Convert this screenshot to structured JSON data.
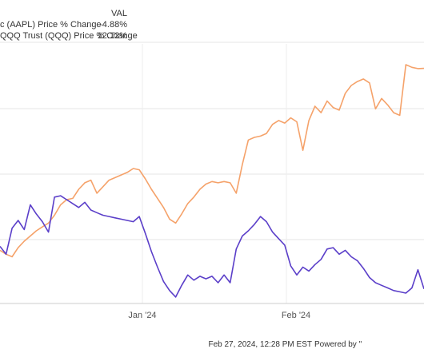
{
  "chart_data": {
    "type": "line",
    "title": "",
    "xlabel": "",
    "ylabel": "",
    "x_tick_labels": [
      "Jan '24",
      "Feb '24"
    ],
    "grid": true,
    "legend_position": "top-left",
    "legend_header": "VAL",
    "series": [
      {
        "name": "Apple Inc (AAPL) Price % Change",
        "legend_name_visible": "c (AAPL) Price % Change",
        "last_value": "-4.88%",
        "color": "#5b3fc9",
        "values": [
          -1.6,
          -2.2,
          -0.2,
          0.4,
          -0.3,
          1.6,
          0.9,
          0.3,
          -0.5,
          2.2,
          2.3,
          2.0,
          1.7,
          1.4,
          1.8,
          1.2,
          1.0,
          0.8,
          0.7,
          0.6,
          0.5,
          0.4,
          0.3,
          0.7,
          -0.6,
          -2.0,
          -3.2,
          -4.3,
          -5.0,
          -5.5,
          -4.6,
          -3.8,
          -4.2,
          -3.9,
          -4.1,
          -3.9,
          -4.4,
          -3.8,
          -4.4,
          -1.8,
          -0.8,
          -0.4,
          0.1,
          0.7,
          0.3,
          -0.5,
          -1.0,
          -1.5,
          -3.1,
          -3.8,
          -3.2,
          -3.5,
          -3.0,
          -2.6,
          -1.8,
          -1.7,
          -2.2,
          -1.9,
          -2.4,
          -2.7,
          -3.3,
          -4.0,
          -4.4,
          -4.6,
          -4.8,
          -5.0,
          -5.1,
          -5.2,
          -4.8,
          -3.4,
          -4.88
        ]
      },
      {
        "name": "Invesco QQQ Trust (QQQ) Price % Change",
        "legend_name_visible": "QQQ Trust (QQQ) Price % Change",
        "last_value": "12.12%",
        "color": "#f5a26a",
        "values": [
          -1.9,
          -2.2,
          -2.4,
          -1.7,
          -1.2,
          -0.8,
          -0.4,
          -0.1,
          0.2,
          0.8,
          1.6,
          2.0,
          2.1,
          2.8,
          3.3,
          3.5,
          2.5,
          3.0,
          3.5,
          3.7,
          3.9,
          4.1,
          4.4,
          4.3,
          3.6,
          2.8,
          2.1,
          1.4,
          0.5,
          0.2,
          0.9,
          1.7,
          2.2,
          2.8,
          3.2,
          3.4,
          3.3,
          3.4,
          3.3,
          2.5,
          4.7,
          6.6,
          6.8,
          6.9,
          7.1,
          7.8,
          8.1,
          7.9,
          8.3,
          8.0,
          5.8,
          8.1,
          9.2,
          8.7,
          9.6,
          9.1,
          8.9,
          10.2,
          10.8,
          11.1,
          11.3,
          11.0,
          9.0,
          9.8,
          9.3,
          8.7,
          8.5,
          12.4,
          12.2,
          12.1,
          12.12
        ]
      }
    ]
  },
  "footer": {
    "timestamp": "Feb 27, 2024, 12:28 PM EST",
    "powered_by": "Powered by \""
  }
}
